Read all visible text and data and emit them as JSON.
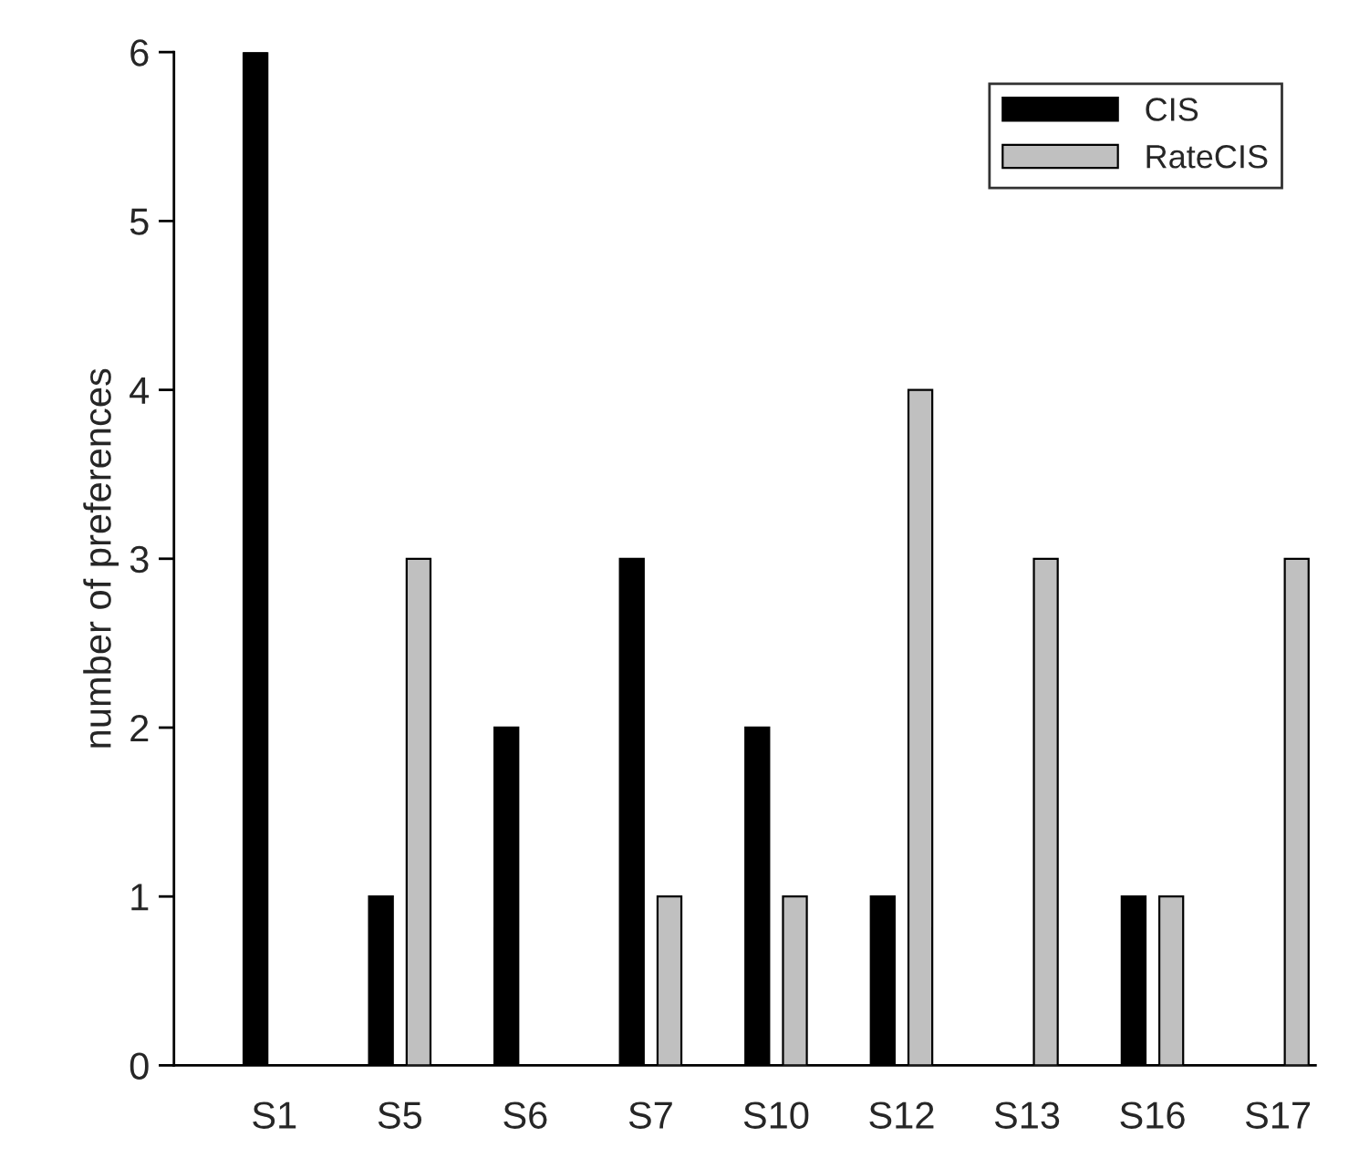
{
  "chart_data": {
    "type": "bar",
    "ylabel": "number of preferences",
    "categories": [
      "S1",
      "S5",
      "S6",
      "S7",
      "S10",
      "S12",
      "S13",
      "S16",
      "S17"
    ],
    "series": [
      {
        "name": "CIS",
        "color": "#000000",
        "values": [
          6,
          1,
          2,
          3,
          2,
          1,
          null,
          1,
          null
        ]
      },
      {
        "name": "RateCIS",
        "color": "#c0c0c0",
        "values": [
          null,
          3,
          null,
          1,
          1,
          4,
          3,
          1,
          3
        ]
      }
    ],
    "ylim": [
      0,
      6
    ],
    "yticks": [
      0,
      1,
      2,
      3,
      4,
      5,
      6
    ],
    "grid": false,
    "legend": "top right"
  }
}
